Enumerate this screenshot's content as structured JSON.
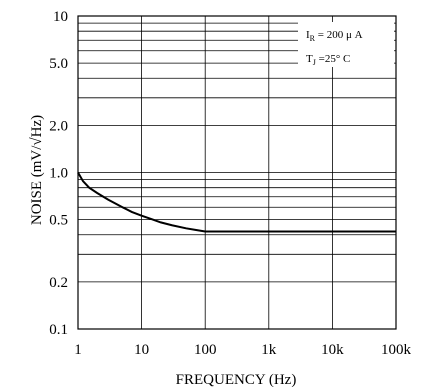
{
  "chart_data": {
    "type": "line",
    "xlabel": "FREQUENCY (Hz)",
    "ylabel": "NOISE (mV/√Hz)",
    "x_scale": "log",
    "y_scale": "log",
    "xlim": [
      1,
      100000
    ],
    "ylim": [
      0.1,
      10
    ],
    "x_ticks": [
      {
        "value": 1,
        "label": "1"
      },
      {
        "value": 10,
        "label": "10"
      },
      {
        "value": 100,
        "label": "100"
      },
      {
        "value": 1000,
        "label": "1k"
      },
      {
        "value": 10000,
        "label": "10k"
      },
      {
        "value": 100000,
        "label": "100k"
      }
    ],
    "y_ticks": [
      {
        "value": 10,
        "label": "10"
      },
      {
        "value": 5,
        "label": "5.0"
      },
      {
        "value": 2,
        "label": "2.0"
      },
      {
        "value": 1,
        "label": "1.0"
      },
      {
        "value": 0.5,
        "label": "0.5"
      },
      {
        "value": 0.2,
        "label": "0.2"
      },
      {
        "value": 0.1,
        "label": "0.1"
      }
    ],
    "grid": true,
    "series": [
      {
        "x": [
          1,
          1.2,
          1.5,
          2,
          3,
          5,
          7,
          10,
          15,
          20,
          30,
          50,
          70,
          100,
          1000,
          10000,
          100000
        ],
        "y": [
          1.0,
          0.88,
          0.8,
          0.74,
          0.67,
          0.6,
          0.56,
          0.53,
          0.5,
          0.48,
          0.46,
          0.44,
          0.43,
          0.42,
          0.42,
          0.42,
          0.42
        ],
        "color": "#000000"
      }
    ],
    "annotations": [
      {
        "main": "I",
        "sub": "R",
        "rest": " = 200 μ A"
      },
      {
        "main": "T",
        "sub": "J",
        "rest": " =25° C"
      }
    ]
  }
}
